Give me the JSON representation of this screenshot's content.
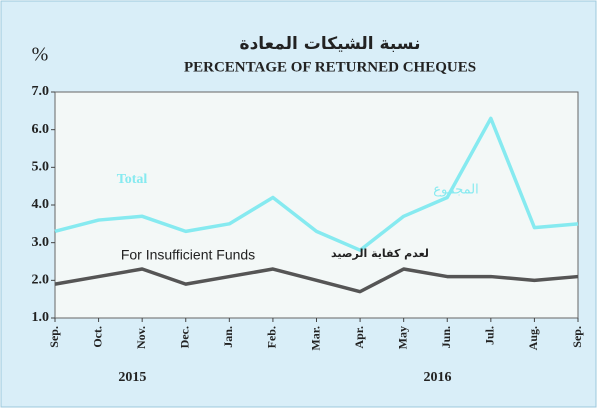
{
  "chart_data": {
    "type": "line",
    "title": "نسبة الشيكات المعادة",
    "subtitle": "PERCENTAGE OF RETURNED CHEQUES",
    "ylabel": "%",
    "categories": [
      "Sep.",
      "Oct.",
      "Nov.",
      "Dec.",
      "Jan.",
      "Feb.",
      "Mar.",
      "Apr.",
      "May",
      "Jun.",
      "Jul.",
      "Aug.",
      "Sep."
    ],
    "years": [
      {
        "label": "2015",
        "category": 2
      },
      {
        "label": "2016",
        "category": 9
      }
    ],
    "series": [
      {
        "name": "Total",
        "name_ar": "المجموع",
        "color": "#86eaf0",
        "values": [
          3.3,
          3.6,
          3.7,
          3.3,
          3.5,
          4.2,
          3.3,
          2.8,
          3.7,
          4.2,
          6.3,
          3.4,
          3.5
        ]
      },
      {
        "name": "For Insufficient Funds",
        "name_ar": "لعدم كفاية الرصيد",
        "color": "#555555",
        "values": [
          1.9,
          2.1,
          2.3,
          1.9,
          2.1,
          2.3,
          2.0,
          1.7,
          2.3,
          2.1,
          2.1,
          2.0,
          2.1
        ]
      }
    ],
    "ylim": [
      1,
      7
    ],
    "yticks": [
      {
        "value": 1,
        "label": "1.0"
      },
      {
        "value": 2,
        "label": "2.0"
      },
      {
        "value": 3,
        "label": "3.0"
      },
      {
        "value": 4,
        "label": "4.0"
      },
      {
        "value": 5,
        "label": "5.0"
      },
      {
        "value": 6,
        "label": "6.0"
      },
      {
        "value": 7,
        "label": "7.0"
      }
    ]
  }
}
